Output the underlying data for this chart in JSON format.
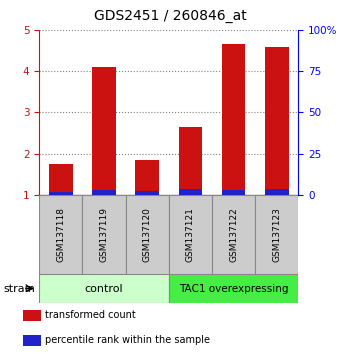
{
  "title": "GDS2451 / 260846_at",
  "samples": [
    "GSM137118",
    "GSM137119",
    "GSM137120",
    "GSM137121",
    "GSM137122",
    "GSM137123"
  ],
  "red_values": [
    1.75,
    4.1,
    1.85,
    2.65,
    4.65,
    4.6
  ],
  "blue_values": [
    0.07,
    0.12,
    0.1,
    0.13,
    0.12,
    0.13
  ],
  "ylim_left": [
    1,
    5
  ],
  "ylim_right": [
    0,
    100
  ],
  "yticks_left": [
    1,
    2,
    3,
    4,
    5
  ],
  "yticks_right": [
    0,
    25,
    50,
    75,
    100
  ],
  "ytick_labels_right": [
    "0",
    "25",
    "50",
    "75",
    "100%"
  ],
  "bar_width": 0.55,
  "red_color": "#cc1111",
  "blue_color": "#2222cc",
  "ctrl_color": "#ccffcc",
  "tac1_color": "#44ee44",
  "sample_box_color": "#cccccc",
  "sample_box_edge": "#888888",
  "strain_label": "strain",
  "legend_items": [
    {
      "color": "#cc1111",
      "label": "transformed count"
    },
    {
      "color": "#2222cc",
      "label": "percentile rank within the sample"
    }
  ],
  "title_fontsize": 10,
  "tick_fontsize": 7.5,
  "sample_fontsize": 6.5,
  "group_fontsize": 8,
  "legend_fontsize": 7,
  "strain_fontsize": 8
}
